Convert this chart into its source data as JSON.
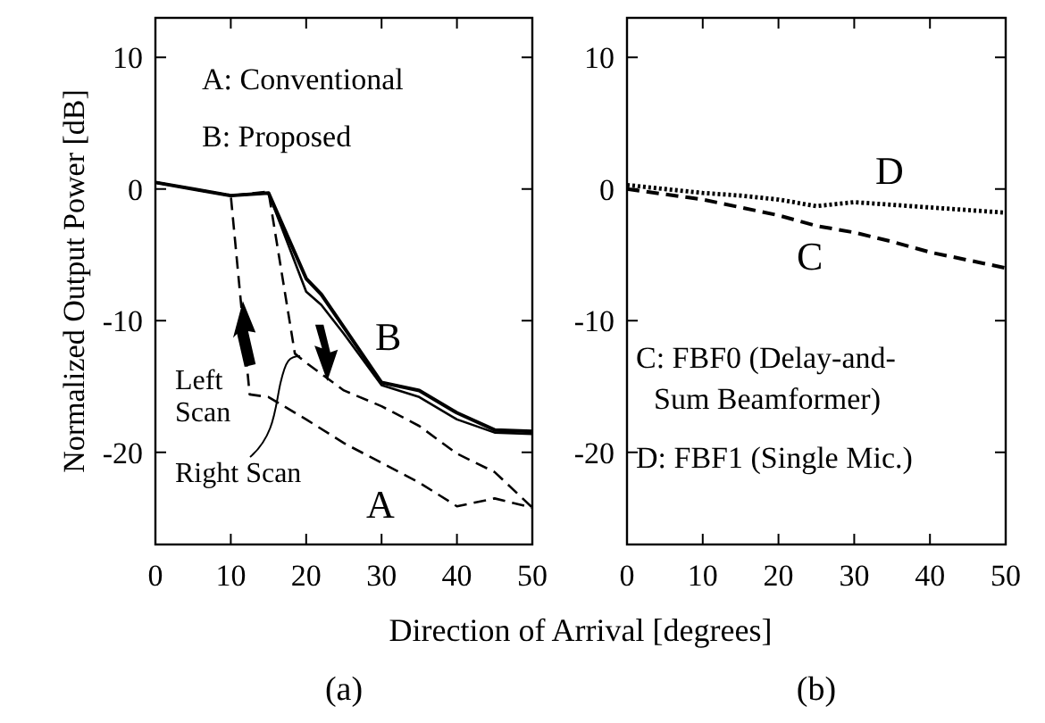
{
  "chart_data": [
    {
      "type": "line",
      "title": "(a)",
      "xlabel": "Direction of Arrival  [degrees]",
      "ylabel": "Normalized Output Power [dB]",
      "xlim": [
        0,
        50
      ],
      "ylim": [
        -27,
        13
      ],
      "xticks": [
        0,
        10,
        20,
        30,
        40,
        50
      ],
      "yticks": [
        -20,
        -10,
        0,
        10
      ],
      "marker": "none",
      "series": [
        {
          "color": "#000000",
          "line_style": "solid",
          "x": [
            0,
            5,
            10,
            15,
            20,
            22,
            25,
            30,
            35,
            40,
            45,
            50
          ],
          "values": [
            0.5,
            0,
            -0.5,
            -0.3,
            -6.8,
            -8,
            -10.5,
            -14.7,
            -15.3,
            -17,
            -18.3,
            -18.4
          ]
        },
        {
          "color": "#000000",
          "line_style": "solid",
          "x": [
            0,
            5,
            10,
            15,
            20,
            22,
            25,
            30,
            35,
            40,
            45,
            50
          ],
          "values": [
            0.5,
            0,
            -0.5,
            -0.3,
            -7.8,
            -8.8,
            -11,
            -14.9,
            -15.8,
            -17.5,
            -18.5,
            -18.6
          ]
        },
        {
          "color": "#000000",
          "line_style": "dashed",
          "x": [
            0,
            5,
            10,
            12.5,
            15,
            20,
            25,
            30,
            35,
            40,
            45,
            50
          ],
          "values": [
            0.5,
            0,
            -0.5,
            -15.6,
            -15.8,
            -17.5,
            -19.3,
            -20.8,
            -22.3,
            -24.1,
            -23.5,
            -24.2
          ]
        },
        {
          "color": "#000000",
          "line_style": "dashed",
          "x": [
            0,
            5,
            10,
            15,
            18.5,
            20,
            25,
            30,
            35,
            40,
            45,
            50
          ],
          "values": [
            0.5,
            0,
            -0.5,
            -0.2,
            -12.5,
            -13.2,
            -15.3,
            -16.5,
            -18,
            -20.1,
            -21.5,
            -24.2
          ]
        }
      ],
      "annotations": [
        "A: Conventional",
        "B: Proposed",
        "B",
        "A",
        "Left Scan",
        {
          "text": "Right Scan",
          "x": 19.2,
          "y": -12.7
        }
      ]
    },
    {
      "type": "line",
      "title": "(b)",
      "xlim": [
        0,
        50
      ],
      "ylim": [
        -27,
        13
      ],
      "xticks": [
        0,
        10,
        20,
        30,
        40,
        50
      ],
      "yticks": [
        -20,
        -10,
        0,
        10
      ],
      "marker": "none",
      "series": [
        {
          "color": "#000000",
          "line_style": "dashed",
          "x": [
            0,
            5,
            10,
            15,
            20,
            25,
            30,
            35,
            40,
            45,
            50
          ],
          "values": [
            0,
            -0.4,
            -0.8,
            -1.4,
            -2,
            -2.8,
            -3.3,
            -4,
            -4.8,
            -5.4,
            -6
          ]
        },
        {
          "color": "#000000",
          "line_style": "dotted",
          "x": [
            0,
            5,
            10,
            15,
            20,
            25,
            30,
            35,
            40,
            45,
            50
          ],
          "values": [
            0.3,
            0,
            -0.3,
            -0.5,
            -0.8,
            -1.3,
            -1,
            -1.2,
            -1.4,
            -1.6,
            -1.8
          ]
        }
      ],
      "annotations": [
        "C: FBF0 (Delay-and-Sum Beamformer)",
        "D: FBF1 (Single Mic.)",
        "D",
        "C"
      ]
    }
  ]
}
